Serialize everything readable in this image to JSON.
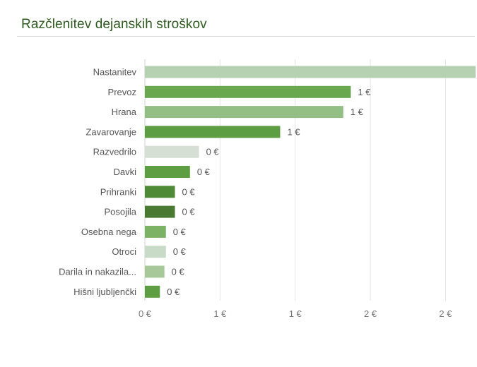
{
  "title": "Razčlenitev dejanskih stroškov",
  "colors": {
    "title": "#2d5a1e",
    "grid": "#e4e4e4",
    "axis": "#d0d0d0",
    "text": "#555555"
  },
  "chart_data": {
    "type": "bar",
    "orientation": "horizontal",
    "title": "Razčlenitev dejanskih stroškov",
    "xlabel": "",
    "ylabel": "",
    "xlim": [
      0,
      2.2
    ],
    "grid": true,
    "x_ticks": [
      {
        "value": 0,
        "label": "0 €"
      },
      {
        "value": 0.5,
        "label": "1 €"
      },
      {
        "value": 1.0,
        "label": "1 €"
      },
      {
        "value": 1.5,
        "label": "2 €"
      },
      {
        "value": 2.0,
        "label": "2 €"
      }
    ],
    "categories": [
      "Nastanitev",
      "Prevoz",
      "Hrana",
      "Zavarovanje",
      "Razvedrilo",
      "Davki",
      "Prihranki",
      "Posojila",
      "Osebna nega",
      "Otroci",
      "Darila in nakazila...",
      "Hišni ljubljenčki"
    ],
    "values": [
      2.2,
      1.37,
      1.32,
      0.9,
      0.36,
      0.3,
      0.2,
      0.2,
      0.14,
      0.14,
      0.13,
      0.1
    ],
    "value_labels": [
      "",
      "1 €",
      "1 €",
      "1 €",
      "0 €",
      "0 €",
      "0 €",
      "0 €",
      "0 €",
      "0 €",
      "0 €",
      "0 €"
    ],
    "bar_colors": [
      "#b6d1b1",
      "#6aa84f",
      "#93bf85",
      "#5e9e42",
      "#d5dfd3",
      "#5e9e42",
      "#4f8a37",
      "#4a7a32",
      "#7cb263",
      "#c8dbc6",
      "#a7c99a",
      "#5e9e42"
    ]
  }
}
